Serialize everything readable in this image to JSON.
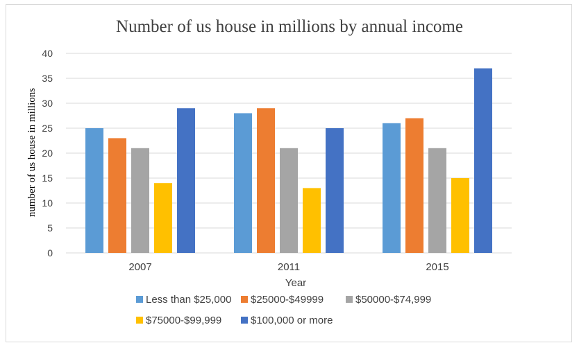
{
  "chart_data": {
    "type": "bar",
    "title": "Number of us house in millions by annual income",
    "xlabel": "Year",
    "ylabel": "number of us house in millions",
    "categories": [
      "2007",
      "2011",
      "2015"
    ],
    "ylim": [
      0,
      40
    ],
    "yticks": [
      0,
      5,
      10,
      15,
      20,
      25,
      30,
      35,
      40
    ],
    "grid": true,
    "legend_position": "bottom",
    "series": [
      {
        "name": "Less than $25,000",
        "color": "#5b9bd5",
        "values": [
          25,
          28,
          26
        ]
      },
      {
        "name": "$25000-$49999",
        "color": "#ed7d31",
        "values": [
          23,
          29,
          27
        ]
      },
      {
        "name": "$50000-$74,999",
        "color": "#a5a5a5",
        "values": [
          21,
          21,
          21
        ]
      },
      {
        "name": "$75000-$99,999",
        "color": "#ffc000",
        "values": [
          14,
          13,
          15
        ]
      },
      {
        "name": "$100,000 or more",
        "color": "#4472c4",
        "values": [
          29,
          25,
          37
        ]
      }
    ]
  }
}
